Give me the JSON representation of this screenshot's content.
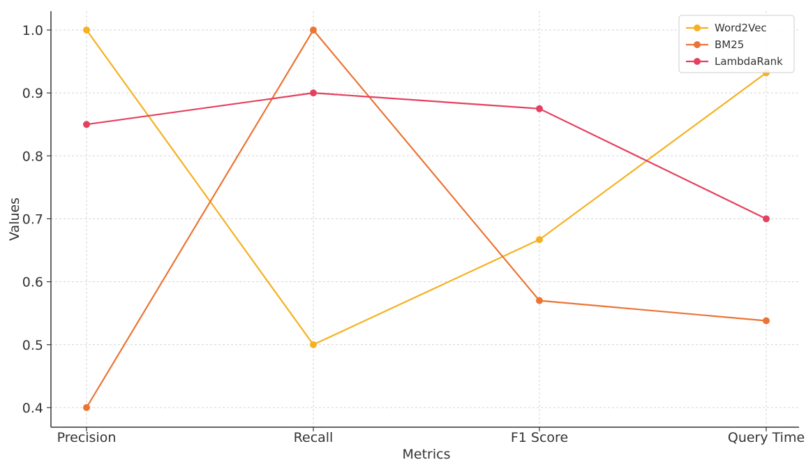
{
  "chart_data": {
    "type": "line",
    "title": "",
    "xlabel": "Metrics",
    "ylabel": "Values",
    "categories": [
      "Precision",
      "Recall",
      "F1 Score",
      "Query Time"
    ],
    "ylim": [
      0.38,
      1.03
    ],
    "yticks": [
      "0.4",
      "0.5",
      "0.6",
      "0.7",
      "0.8",
      "0.9",
      "1.0"
    ],
    "grid": true,
    "legend_position": "top-right",
    "series": [
      {
        "name": "Word2Vec",
        "color": "#f5b120",
        "values": [
          1.0,
          0.5,
          0.667,
          0.932
        ]
      },
      {
        "name": "BM25",
        "color": "#eb7434",
        "values": [
          0.4,
          1.0,
          0.57,
          0.538
        ]
      },
      {
        "name": "LambdaRank",
        "color": "#e4405f",
        "values": [
          0.85,
          0.9,
          0.875,
          0.7
        ]
      }
    ]
  }
}
